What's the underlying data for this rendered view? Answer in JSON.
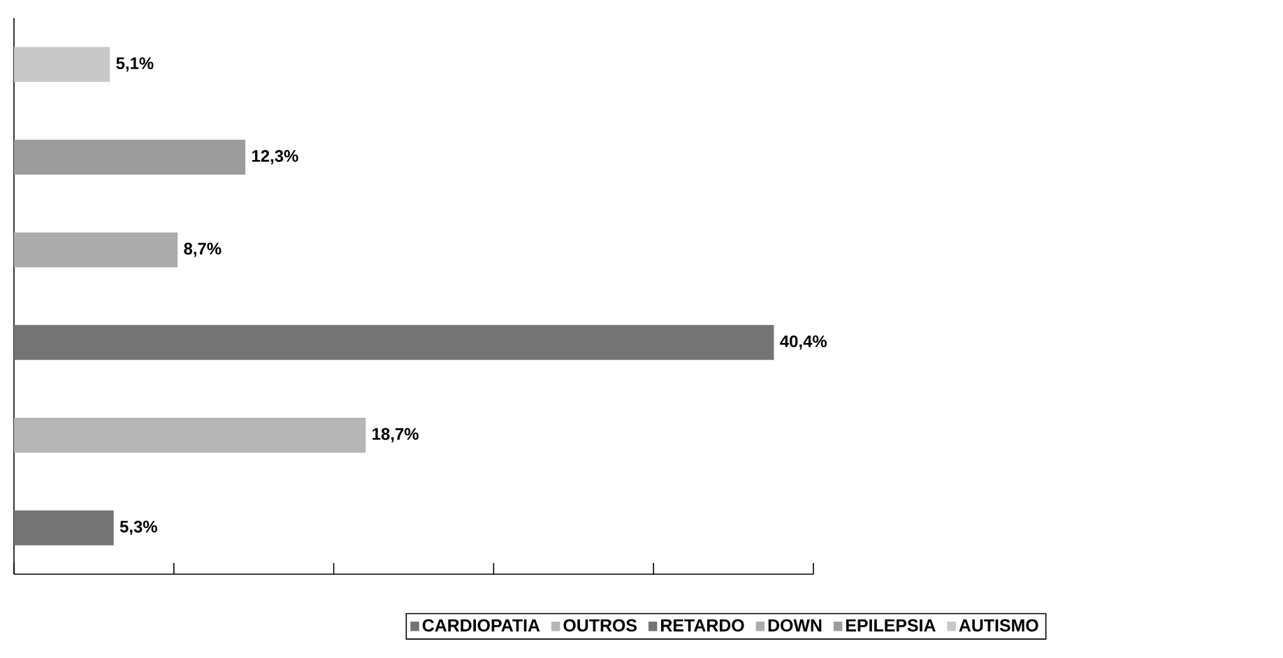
{
  "chart_data": {
    "type": "bar",
    "orientation": "horizontal",
    "categories": [
      null,
      null,
      null,
      null,
      null,
      null
    ],
    "xlim": [
      0,
      42.5
    ],
    "xticks": [
      {
        "value": 0,
        "label": null
      },
      {
        "value": 8.5,
        "label": null
      },
      {
        "value": 17,
        "label": null
      },
      {
        "value": 25.5,
        "label": null
      },
      {
        "value": 34,
        "label": null
      },
      {
        "value": 42.5,
        "label": null
      }
    ],
    "legend": "bottom right",
    "stacked": true,
    "series": [
      {
        "name": "CARDIOPATIA",
        "color": "#747474",
        "values": [
          null,
          null,
          null,
          null,
          null,
          5.3
        ],
        "value_labels": [
          null,
          null,
          null,
          null,
          null,
          "5,3%"
        ]
      },
      {
        "name": "OUTROS",
        "color": "#b6b6b6",
        "values": [
          null,
          null,
          null,
          null,
          18.7,
          null
        ],
        "value_labels": [
          null,
          null,
          null,
          null,
          "18,7%",
          null
        ]
      },
      {
        "name": "RETARDO",
        "color": "#747474",
        "values": [
          null,
          null,
          null,
          40.4,
          null,
          null
        ],
        "value_labels": [
          null,
          null,
          null,
          "40,4%",
          null,
          null
        ]
      },
      {
        "name": "DOWN",
        "color": "#acacac",
        "values": [
          null,
          null,
          8.7,
          null,
          null,
          null
        ],
        "value_labels": [
          null,
          null,
          "8,7%",
          null,
          null,
          null
        ]
      },
      {
        "name": "EPILEPSIA",
        "color": "#9c9c9c",
        "values": [
          null,
          12.3,
          null,
          null,
          null,
          null
        ],
        "value_labels": [
          null,
          "12,3%",
          null,
          null,
          null,
          null
        ]
      },
      {
        "name": "AUTISMO",
        "color": "#c8c8c8",
        "values": [
          5.1,
          null,
          null,
          null,
          null,
          null
        ],
        "value_labels": [
          "5,1%",
          null,
          null,
          null,
          null,
          null
        ]
      }
    ]
  }
}
